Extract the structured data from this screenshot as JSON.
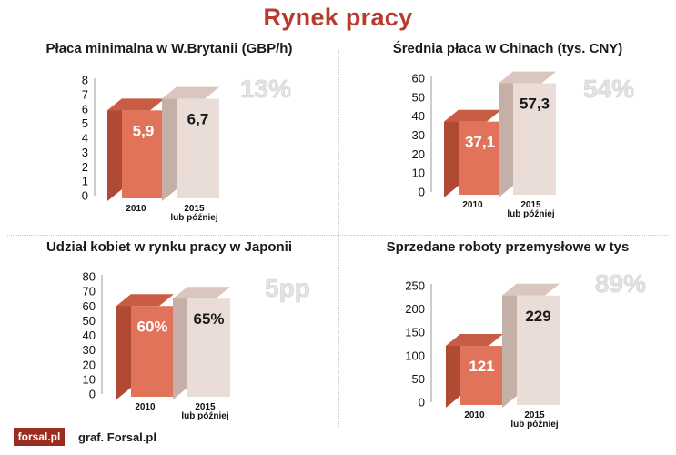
{
  "title": "Rynek pracy",
  "footer": {
    "logo": "forsal.pl",
    "credit": "graf. Forsal.pl"
  },
  "colors": {
    "bar_2010_front": "#e0735a",
    "bar_2010_side": "#b14a35",
    "bar_2010_top": "#c95c44",
    "bar_2015_front": "#eadcd6",
    "bar_2015_side": "#c5b0a8",
    "bar_2015_top": "#d8c6bf",
    "label_2010": "#ffffff",
    "label_2015": "#1a1a1a"
  },
  "chart_data": [
    {
      "type": "bar",
      "title": "Płaca minimalna w W.Brytanii (GBP/h)",
      "categories": [
        "2010",
        "2015 lub później"
      ],
      "category_lines": [
        [
          "2010"
        ],
        [
          "2015",
          "lub później"
        ]
      ],
      "values": [
        5.9,
        6.7
      ],
      "value_labels": [
        "5,9",
        "6,7"
      ],
      "change_label": "13%",
      "ylim": [
        0,
        8
      ],
      "yticks": [
        0,
        1,
        2,
        3,
        4,
        5,
        6,
        7,
        8
      ]
    },
    {
      "type": "bar",
      "title": "Średnia płaca w Chinach (tys. CNY)",
      "categories": [
        "2010",
        "2015 lub później"
      ],
      "category_lines": [
        [
          "2010"
        ],
        [
          "2015",
          "lub później"
        ]
      ],
      "values": [
        37.1,
        57.3
      ],
      "value_labels": [
        "37,1",
        "57,3"
      ],
      "change_label": "54%",
      "ylim": [
        0,
        60
      ],
      "yticks": [
        0,
        10,
        20,
        30,
        40,
        50,
        60
      ]
    },
    {
      "type": "bar",
      "title": "Udział kobiet w rynku pracy w Japonii",
      "categories": [
        "2010",
        "2015 lub później"
      ],
      "category_lines": [
        [
          "2010"
        ],
        [
          "2015",
          "lub później"
        ]
      ],
      "values": [
        60,
        65
      ],
      "value_labels": [
        "60%",
        "65%"
      ],
      "change_label": "5pp",
      "ylim": [
        0,
        80
      ],
      "yticks": [
        0,
        10,
        20,
        30,
        40,
        50,
        60,
        70,
        80
      ]
    },
    {
      "type": "bar",
      "title": "Sprzedane roboty przemysłowe w tys",
      "categories": [
        "2010",
        "2015 lub później"
      ],
      "category_lines": [
        [
          "2010"
        ],
        [
          "2015",
          "lub później"
        ]
      ],
      "values": [
        121,
        229
      ],
      "value_labels": [
        "121",
        "229"
      ],
      "change_label": "89%",
      "ylim": [
        0,
        250
      ],
      "yticks": [
        0,
        50,
        100,
        150,
        200,
        250
      ]
    }
  ]
}
